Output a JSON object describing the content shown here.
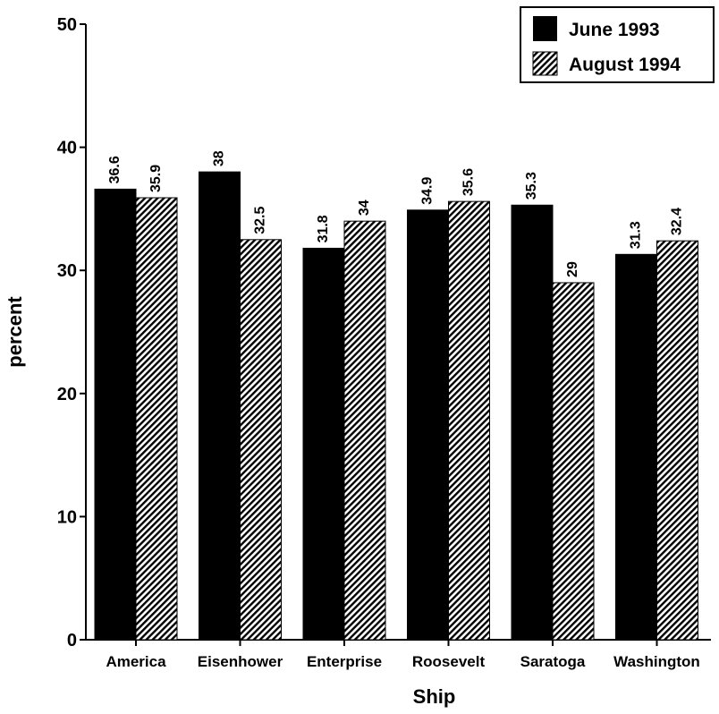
{
  "chart_data": {
    "type": "bar",
    "title": "",
    "xlabel": "Ship",
    "ylabel": "percent",
    "ylim": [
      0,
      50
    ],
    "yticks": [
      0,
      10,
      20,
      30,
      40,
      50
    ],
    "grid": false,
    "legend_position": "top-right",
    "categories": [
      "America",
      "Eisenhower",
      "Enterprise",
      "Roosevelt",
      "Saratoga",
      "Washington"
    ],
    "series": [
      {
        "name": "June 1993",
        "values": [
          36.6,
          38,
          31.8,
          34.9,
          35.3,
          31.3
        ],
        "data_labels": [
          "36.6",
          "38",
          "31.8",
          "34.9",
          "35.3",
          "31.3"
        ],
        "fill": "solid",
        "color": "#000000"
      },
      {
        "name": "August 1994",
        "values": [
          35.9,
          32.5,
          34,
          35.6,
          29,
          32.4
        ],
        "data_labels": [
          "35.9",
          "32.5",
          "34",
          "35.6",
          "29",
          "32.4"
        ],
        "fill": "hatched",
        "color": "#000000"
      }
    ]
  }
}
